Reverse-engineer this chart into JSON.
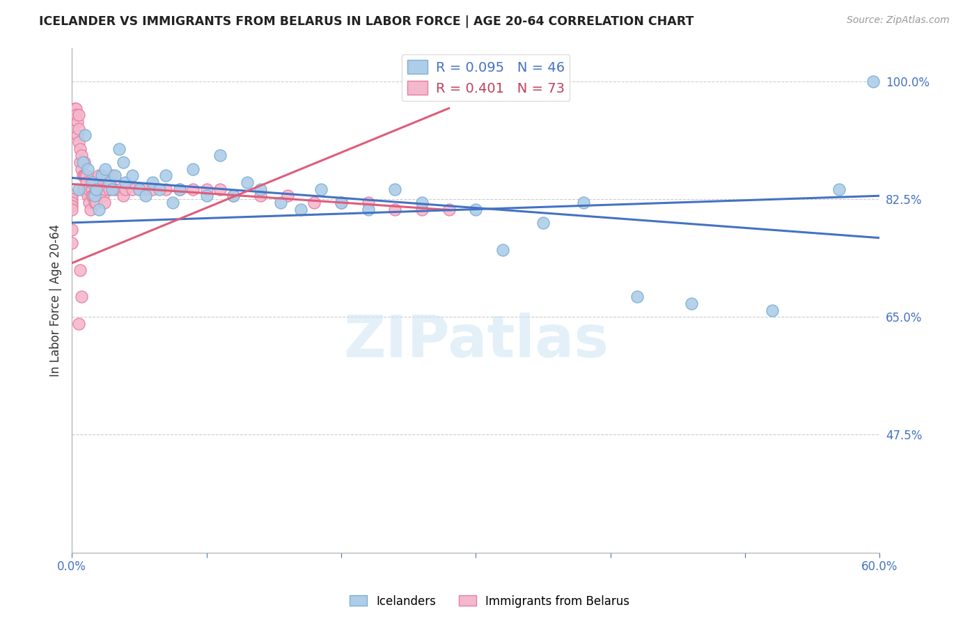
{
  "title": "ICELANDER VS IMMIGRANTS FROM BELARUS IN LABOR FORCE | AGE 20-64 CORRELATION CHART",
  "source": "Source: ZipAtlas.com",
  "ylabel": "In Labor Force | Age 20-64",
  "ytick_labels": [
    "100.0%",
    "82.5%",
    "65.0%",
    "47.5%"
  ],
  "ytick_values": [
    1.0,
    0.825,
    0.65,
    0.475
  ],
  "xlim": [
    0.0,
    0.6
  ],
  "ylim": [
    0.3,
    1.05
  ],
  "legend_ice_R": "0.095",
  "legend_ice_N": "46",
  "legend_bel_R": "0.401",
  "legend_bel_N": "73",
  "icelanders_color": "#aecde8",
  "belarus_color": "#f4b8cc",
  "icelanders_edge": "#7ab0d4",
  "belarus_edge": "#e87da0",
  "trend_icelanders": "#4472c4",
  "trend_belarus": "#e05c7a",
  "watermark": "ZIPatlas",
  "icelanders_x": [
    0.005,
    0.008,
    0.01,
    0.012,
    0.015,
    0.017,
    0.018,
    0.02,
    0.022,
    0.025,
    0.028,
    0.03,
    0.032,
    0.035,
    0.038,
    0.04,
    0.045,
    0.05,
    0.055,
    0.06,
    0.065,
    0.07,
    0.075,
    0.08,
    0.09,
    0.1,
    0.11,
    0.12,
    0.13,
    0.14,
    0.155,
    0.17,
    0.185,
    0.2,
    0.22,
    0.24,
    0.26,
    0.3,
    0.32,
    0.35,
    0.38,
    0.42,
    0.46,
    0.52,
    0.57,
    0.595
  ],
  "icelanders_y": [
    0.84,
    0.88,
    0.92,
    0.87,
    0.85,
    0.83,
    0.84,
    0.81,
    0.86,
    0.87,
    0.85,
    0.84,
    0.86,
    0.9,
    0.88,
    0.85,
    0.86,
    0.84,
    0.83,
    0.85,
    0.84,
    0.86,
    0.82,
    0.84,
    0.87,
    0.83,
    0.89,
    0.83,
    0.85,
    0.84,
    0.82,
    0.81,
    0.84,
    0.82,
    0.81,
    0.84,
    0.82,
    0.81,
    0.75,
    0.79,
    0.82,
    0.68,
    0.67,
    0.66,
    0.84,
    1.0
  ],
  "belarus_x": [
    0.0,
    0.0,
    0.0,
    0.0,
    0.0,
    0.0,
    0.0,
    0.002,
    0.003,
    0.003,
    0.004,
    0.004,
    0.005,
    0.005,
    0.005,
    0.006,
    0.006,
    0.007,
    0.007,
    0.008,
    0.008,
    0.009,
    0.009,
    0.009,
    0.01,
    0.01,
    0.011,
    0.011,
    0.012,
    0.012,
    0.013,
    0.013,
    0.014,
    0.015,
    0.015,
    0.016,
    0.016,
    0.017,
    0.018,
    0.018,
    0.02,
    0.021,
    0.022,
    0.023,
    0.024,
    0.025,
    0.028,
    0.03,
    0.032,
    0.035,
    0.038,
    0.04,
    0.045,
    0.05,
    0.055,
    0.06,
    0.07,
    0.08,
    0.09,
    0.1,
    0.11,
    0.12,
    0.14,
    0.16,
    0.18,
    0.2,
    0.22,
    0.24,
    0.26,
    0.28,
    0.005,
    0.006,
    0.007
  ],
  "belarus_y": [
    0.83,
    0.825,
    0.82,
    0.815,
    0.81,
    0.78,
    0.76,
    0.96,
    0.96,
    0.95,
    0.94,
    0.92,
    0.95,
    0.93,
    0.91,
    0.9,
    0.88,
    0.89,
    0.87,
    0.86,
    0.84,
    0.88,
    0.86,
    0.84,
    0.86,
    0.84,
    0.86,
    0.85,
    0.84,
    0.83,
    0.84,
    0.82,
    0.81,
    0.84,
    0.83,
    0.85,
    0.83,
    0.82,
    0.84,
    0.82,
    0.86,
    0.85,
    0.84,
    0.83,
    0.82,
    0.84,
    0.84,
    0.86,
    0.84,
    0.84,
    0.83,
    0.84,
    0.84,
    0.84,
    0.84,
    0.84,
    0.84,
    0.84,
    0.84,
    0.84,
    0.84,
    0.83,
    0.83,
    0.83,
    0.82,
    0.82,
    0.82,
    0.81,
    0.81,
    0.81,
    0.64,
    0.72,
    0.68
  ]
}
